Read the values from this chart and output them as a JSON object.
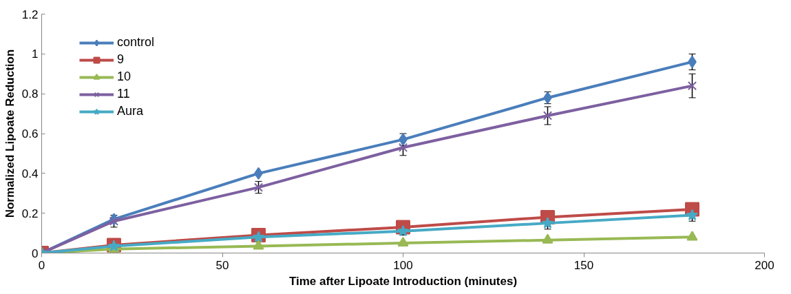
{
  "chart_data": {
    "type": "line",
    "xlabel": "Time after Lipoate Introduction (minutes)",
    "ylabel": "Normalized Lipoate Reduction",
    "x": [
      0,
      20,
      60,
      100,
      140,
      180
    ],
    "xlim": [
      0,
      200
    ],
    "xticks": [
      0,
      50,
      100,
      150,
      200
    ],
    "ylim": [
      0,
      1.2
    ],
    "yticks": [
      0,
      0.2,
      0.4,
      0.6,
      0.8,
      1,
      1.2
    ],
    "grid": false,
    "legend": "top left",
    "line_style": "solid",
    "series": [
      {
        "name": "control",
        "color": "#4a7ebb",
        "marker": "diamond",
        "values": [
          0,
          0.17,
          0.4,
          0.57,
          0.78,
          0.96
        ],
        "errors": [
          null,
          null,
          null,
          0.03,
          0.03,
          0.04
        ]
      },
      {
        "name": "9",
        "color": "#be4b48",
        "marker": "square",
        "values": [
          0,
          0.04,
          0.09,
          0.13,
          0.18,
          0.22
        ]
      },
      {
        "name": "10",
        "color": "#98b954",
        "marker": "triangle",
        "values": [
          0,
          0.02,
          0.035,
          0.05,
          0.065,
          0.08
        ]
      },
      {
        "name": "11",
        "color": "#7d60a0",
        "marker": "cross",
        "values": [
          0,
          0.16,
          0.33,
          0.53,
          0.69,
          0.84
        ],
        "errors": [
          null,
          0.03,
          0.03,
          0.04,
          0.045,
          0.06
        ]
      },
      {
        "name": "Aura",
        "color": "#46aac5",
        "marker": "star",
        "values": [
          0,
          0.035,
          0.08,
          0.11,
          0.15,
          0.19
        ],
        "errors": [
          null,
          null,
          null,
          0.02,
          0.03,
          0.03
        ]
      }
    ]
  }
}
